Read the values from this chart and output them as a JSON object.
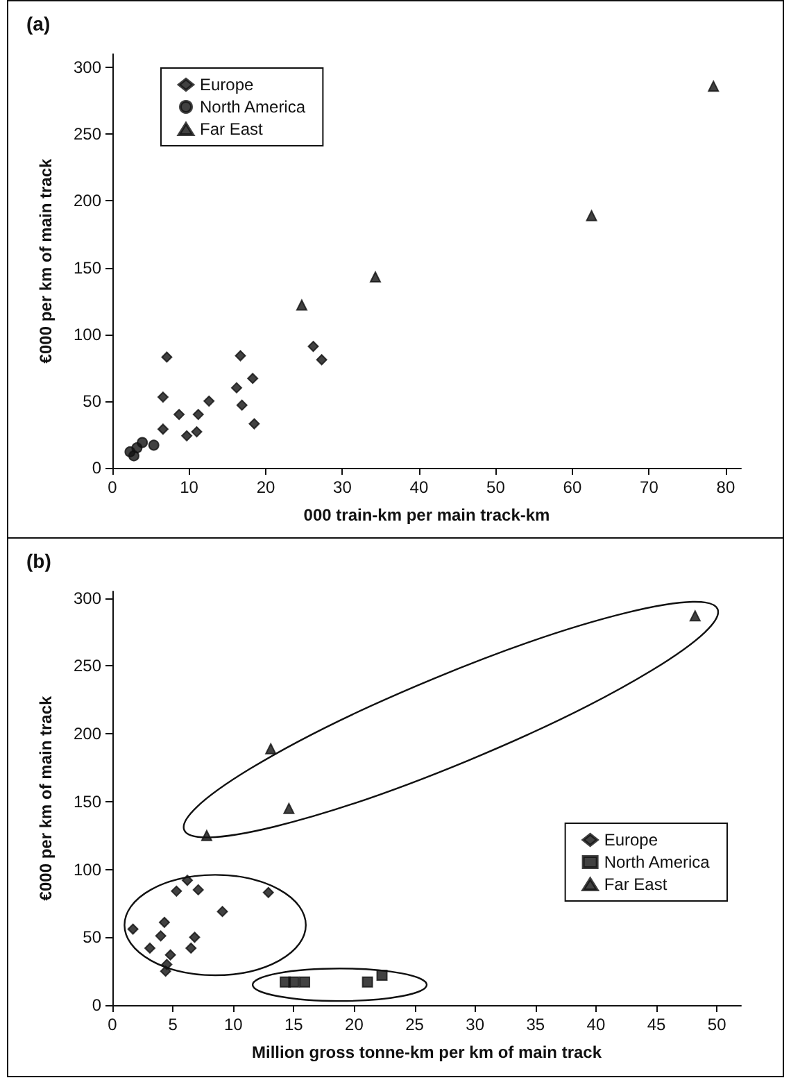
{
  "chart_data": [
    {
      "type": "scatter",
      "title": "(a)",
      "xlabel": "000 train-km per main track-km",
      "ylabel": "€000 per km of main track",
      "xlim": [
        0,
        82
      ],
      "ylim": [
        0,
        310
      ],
      "xticks": [
        0,
        10,
        20,
        30,
        40,
        50,
        60,
        70,
        80
      ],
      "yticks": [
        0,
        50,
        100,
        150,
        200,
        250,
        300
      ],
      "legend": "top left",
      "grid": false,
      "series": [
        {
          "name": "Europe",
          "color": "#111111",
          "marker": "diamond",
          "x": [
            7.1,
            6.6,
            6.6,
            8.7,
            9.7,
            11.2,
            11.0,
            12.6,
            16.2,
            16.7,
            16.9,
            18.3,
            18.5,
            26.2,
            27.3
          ],
          "values": [
            83,
            53,
            29,
            40,
            24,
            40,
            27,
            50,
            60,
            84,
            47,
            67,
            33,
            91,
            81
          ]
        },
        {
          "name": "North America",
          "color": "#111111",
          "marker": "circle",
          "x": [
            2.3,
            2.8,
            3.2,
            3.9,
            5.4
          ],
          "values": [
            12,
            9,
            15,
            19,
            17
          ]
        },
        {
          "name": "Far East",
          "color": "#111111",
          "marker": "triangle",
          "x": [
            24.7,
            34.3,
            62.5,
            78.4
          ],
          "values": [
            122,
            143,
            189,
            286
          ]
        }
      ]
    },
    {
      "type": "scatter",
      "title": "(b)",
      "xlabel": "Million gross tonne-km per km of main track",
      "ylabel": "€000 per km of main track",
      "xlim": [
        0,
        52
      ],
      "ylim": [
        0,
        305
      ],
      "xticks": [
        0,
        5,
        10,
        15,
        20,
        25,
        30,
        35,
        40,
        45,
        50
      ],
      "yticks": [
        0,
        50,
        100,
        150,
        200,
        250,
        300
      ],
      "legend": "right",
      "grid": false,
      "series": [
        {
          "name": "Europe",
          "color": "#111111",
          "marker": "diamond",
          "x": [
            1.7,
            3.1,
            4.0,
            4.3,
            5.3,
            6.2,
            7.1,
            9.1,
            6.5,
            6.8,
            12.9,
            4.8,
            4.5,
            4.4
          ],
          "values": [
            56,
            42,
            51,
            61,
            84,
            92,
            85,
            69,
            42,
            50,
            83,
            37,
            30,
            25
          ]
        },
        {
          "name": "North America",
          "color": "#111111",
          "marker": "square",
          "x": [
            14.3,
            15.0,
            15.9,
            21.1,
            22.3
          ],
          "values": [
            17,
            17,
            17,
            17,
            22
          ]
        },
        {
          "name": "Far East",
          "color": "#111111",
          "marker": "triangle",
          "x": [
            7.8,
            13.1,
            14.6,
            48.2
          ],
          "values": [
            125,
            189,
            145,
            287
          ]
        }
      ]
    }
  ]
}
